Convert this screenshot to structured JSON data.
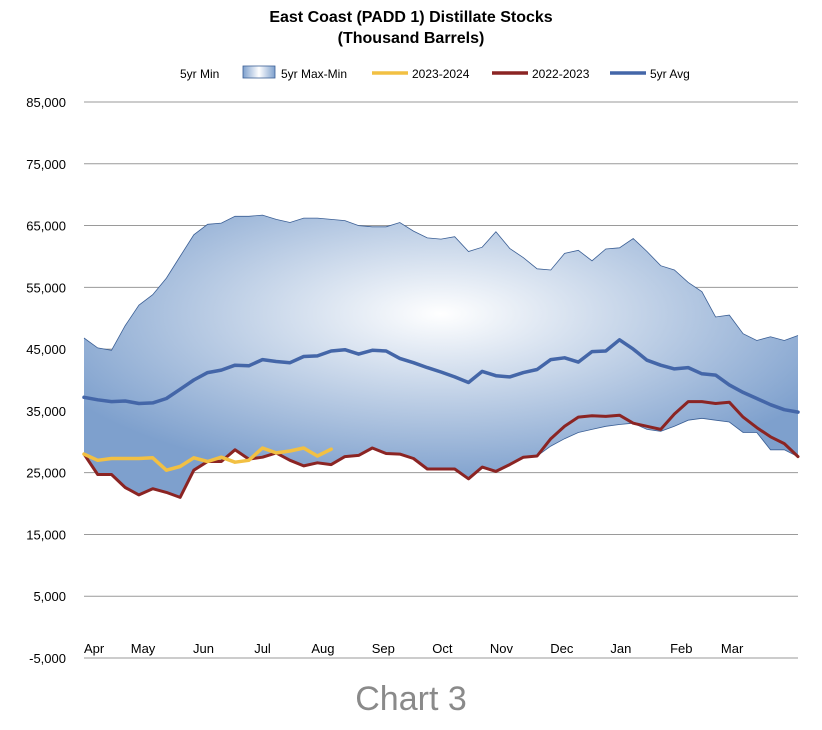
{
  "chart_data": {
    "type": "area",
    "title": "East Coast (PADD 1) Distillate Stocks",
    "subtitle": "(Thousand Barrels)",
    "ylim": [
      -5000,
      85000
    ],
    "yticks": [
      -5000,
      5000,
      15000,
      25000,
      35000,
      45000,
      55000,
      65000,
      75000,
      85000
    ],
    "ytick_labels": [
      "-5,000",
      "5,000",
      "15,000",
      "25,000",
      "35,000",
      "45,000",
      "55,000",
      "65,000",
      "75,000",
      "85,000"
    ],
    "x_label_weeks": [
      0,
      4.3,
      8.7,
      13,
      17.4,
      21.8,
      26.1,
      30.4,
      34.8,
      39.1,
      43.5,
      47.2
    ],
    "x_labels": [
      "Apr",
      "May",
      "Jun",
      "Jul",
      "Aug",
      "Sep",
      "Oct",
      "Nov",
      "Dec",
      "Jan",
      "Feb",
      "Mar"
    ],
    "week_count": 52,
    "legend": [
      "5yr Min",
      "5yr Max-Min",
      "2023-2024",
      "2022-2023",
      "5yr Avg"
    ],
    "colors": {
      "max_min_fill_center": "#ffffff",
      "max_min_fill_edge": "#7ea0cd",
      "band_border": "#3b5f95",
      "y2023_2024": "#f2c043",
      "y2022_2023": "#8b2423",
      "avg": "#4466a8"
    },
    "series": [
      {
        "name": "5yr Max",
        "values": [
          46800,
          45200,
          44800,
          48800,
          52100,
          53800,
          56500,
          60000,
          63500,
          65200,
          65400,
          66500,
          66500,
          66700,
          66000,
          65500,
          66200,
          66200,
          66000,
          65800,
          65000,
          64800,
          64800,
          65500,
          64100,
          63000,
          62800,
          63200,
          60800,
          61500,
          64000,
          61300,
          59800,
          58000,
          57800,
          60500,
          61000,
          59300,
          61200,
          61400,
          62900,
          60800,
          58500,
          57800,
          55800,
          54300,
          50200,
          50500,
          47500,
          46400,
          47000,
          46400,
          47200
        ]
      },
      {
        "name": "5yr Min",
        "values": [
          28000,
          24700,
          24700,
          22600,
          21400,
          22400,
          21800,
          21000,
          25400,
          26800,
          26800,
          28700,
          27200,
          27500,
          28200,
          27000,
          26100,
          26600,
          26300,
          27600,
          27800,
          29000,
          28100,
          28000,
          27300,
          25600,
          25600,
          25600,
          24000,
          25900,
          25200,
          26300,
          27500,
          27700,
          29300,
          30500,
          31500,
          32000,
          32500,
          32800,
          33000,
          32000,
          31700,
          32500,
          33500,
          33800,
          33500,
          33200,
          31500,
          31500,
          28700,
          28700,
          27600
        ]
      },
      {
        "name": "5yr Avg",
        "values": [
          37200,
          36800,
          36500,
          36600,
          36200,
          36300,
          37000,
          38500,
          40000,
          41200,
          41600,
          42400,
          42300,
          43300,
          43000,
          42800,
          43800,
          43900,
          44700,
          44900,
          44200,
          44800,
          44700,
          43500,
          42800,
          42000,
          41300,
          40500,
          39600,
          41400,
          40700,
          40500,
          41200,
          41700,
          43300,
          43600,
          42900,
          44600,
          44700,
          46500,
          45000,
          43200,
          42400,
          41800,
          42000,
          41000,
          40800,
          39200,
          38000,
          37000,
          36000,
          35200,
          34800
        ]
      },
      {
        "name": "2022-2023",
        "values": [
          28000,
          24700,
          24700,
          22600,
          21400,
          22400,
          21800,
          21000,
          25400,
          26800,
          26800,
          28700,
          27200,
          27500,
          28200,
          27000,
          26100,
          26600,
          26300,
          27600,
          27800,
          29000,
          28100,
          28000,
          27300,
          25600,
          25600,
          25600,
          24000,
          25900,
          25200,
          26300,
          27500,
          27700,
          30500,
          32500,
          34000,
          34200,
          34100,
          34300,
          33000,
          32500,
          32000,
          34500,
          36500,
          36500,
          36200,
          36400,
          34000,
          32300,
          30800,
          29700,
          27600
        ]
      },
      {
        "name": "2023-2024",
        "values": [
          28000,
          27000,
          27300,
          27300,
          27300,
          27400,
          25400,
          26000,
          27400,
          26800,
          27500,
          26700,
          27000,
          29000,
          28200,
          28500,
          29000,
          27700,
          28800
        ]
      }
    ]
  },
  "caption": "Chart 3"
}
